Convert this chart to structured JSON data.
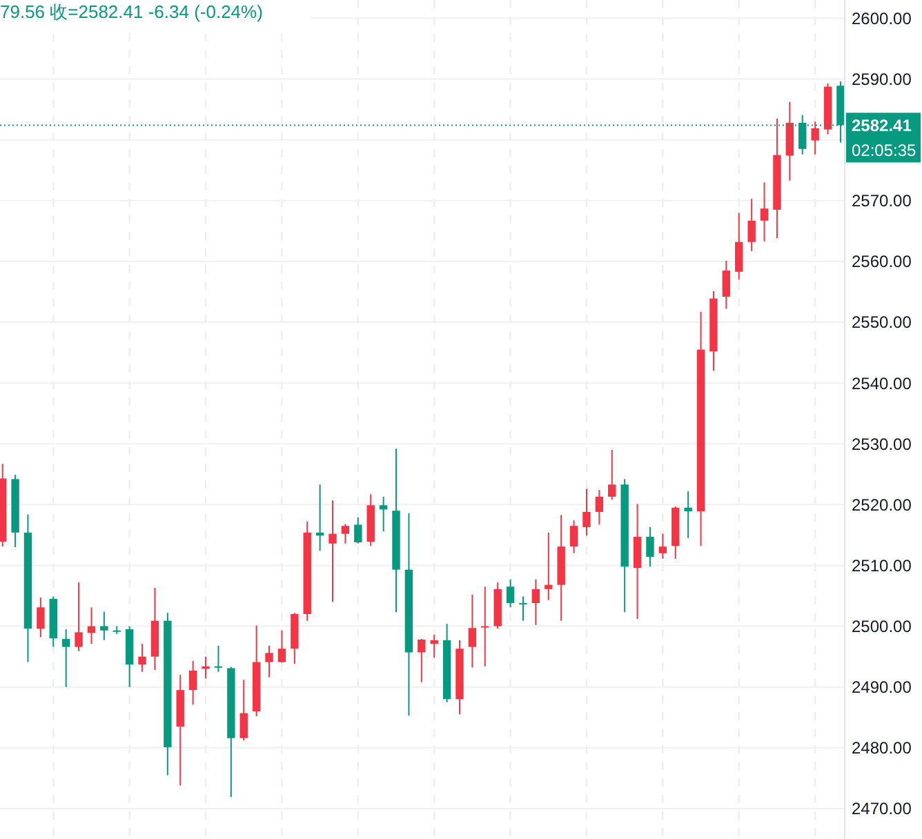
{
  "chart_data": {
    "type": "candlestick",
    "categories": [
      null,
      null,
      null,
      null,
      null,
      null,
      null,
      null,
      null,
      null,
      null,
      null,
      null,
      null,
      null,
      null,
      null,
      null,
      null,
      null,
      null,
      null,
      null,
      null,
      null,
      null,
      null,
      null,
      null,
      null,
      null,
      null,
      null,
      null,
      null,
      null,
      null,
      null,
      null,
      null,
      null,
      null,
      null,
      null,
      null,
      null,
      null,
      null,
      null,
      null,
      null,
      null,
      null,
      null,
      null,
      null,
      null,
      null,
      null,
      null,
      null,
      null,
      null,
      null,
      null,
      null,
      null
    ],
    "ohlc": [
      [
        2513.9,
        2526.7,
        2513.1,
        2524.3
      ],
      [
        2524.2,
        2524.9,
        2513.0,
        2515.4
      ],
      [
        2515.4,
        2518.4,
        2494.1,
        2499.6
      ],
      [
        2499.6,
        2504.7,
        2498.2,
        2503.1
      ],
      [
        2504.5,
        2504.9,
        2496.6,
        2498.0
      ],
      [
        2497.9,
        2499.5,
        2490.0,
        2496.6
      ],
      [
        2496.6,
        2507.2,
        2495.9,
        2499.0
      ],
      [
        2498.9,
        2503.1,
        2497.1,
        2500.0
      ],
      [
        2500.0,
        2502.4,
        2497.7,
        2499.3
      ],
      [
        2499.3,
        2500.0,
        2498.7,
        2499.2
      ],
      [
        2499.5,
        2500.0,
        2490.0,
        2493.7
      ],
      [
        2493.7,
        2497.1,
        2492.5,
        2495.0
      ],
      [
        2495.0,
        2506.3,
        2492.8,
        2500.9
      ],
      [
        2500.9,
        2502.2,
        2475.5,
        2480.1
      ],
      [
        2483.5,
        2492.0,
        2473.8,
        2489.5
      ],
      [
        2489.5,
        2494.3,
        2487.1,
        2492.7
      ],
      [
        2493.0,
        2495.0,
        2491.4,
        2493.4
      ],
      [
        2493.4,
        2496.8,
        2492.5,
        2493.2
      ],
      [
        2493.1,
        2493.3,
        2471.9,
        2481.6
      ],
      [
        2481.6,
        2491.2,
        2481.2,
        2485.7
      ],
      [
        2486.0,
        2500.1,
        2485.2,
        2494.1
      ],
      [
        2494.1,
        2496.8,
        2491.6,
        2495.6
      ],
      [
        2494.1,
        2499.3,
        2494.0,
        2496.3
      ],
      [
        2496.3,
        2502.2,
        2493.8,
        2502.0
      ],
      [
        2502.0,
        2517.2,
        2500.9,
        2515.4
      ],
      [
        2515.4,
        2523.3,
        2512.4,
        2514.9
      ],
      [
        2513.6,
        2520.7,
        2504.0,
        2515.2
      ],
      [
        2515.2,
        2516.8,
        2513.6,
        2516.5
      ],
      [
        2516.7,
        2517.9,
        2513.6,
        2513.8
      ],
      [
        2513.9,
        2521.7,
        2513.2,
        2519.9
      ],
      [
        2519.9,
        2521.3,
        2515.6,
        2519.2
      ],
      [
        2519.0,
        2529.2,
        2502.3,
        2509.3
      ],
      [
        2509.3,
        2518.6,
        2485.3,
        2495.7
      ],
      [
        2495.7,
        2497.9,
        2490.8,
        2497.8
      ],
      [
        2497.1,
        2498.6,
        2494.8,
        2497.7
      ],
      [
        2497.7,
        2500.4,
        2487.5,
        2488.0
      ],
      [
        2488.0,
        2497.7,
        2485.5,
        2496.3
      ],
      [
        2496.6,
        2505.2,
        2493.2,
        2499.7
      ],
      [
        2499.8,
        2506.5,
        2493.4,
        2500.0
      ],
      [
        2500.0,
        2507.2,
        2499.6,
        2506.1
      ],
      [
        2506.5,
        2507.7,
        2503.1,
        2503.8
      ],
      [
        2503.8,
        2504.9,
        2500.9,
        2503.7
      ],
      [
        2503.8,
        2507.7,
        2500.2,
        2506.1
      ],
      [
        2506.1,
        2515.4,
        2504.3,
        2506.8
      ],
      [
        2506.8,
        2518.3,
        2500.9,
        2513.1
      ],
      [
        2513.1,
        2517.4,
        2512.0,
        2516.5
      ],
      [
        2516.3,
        2522.6,
        2514.9,
        2518.8
      ],
      [
        2518.8,
        2522.4,
        2516.7,
        2521.3
      ],
      [
        2521.3,
        2529.0,
        2520.8,
        2523.3
      ],
      [
        2523.3,
        2524.2,
        2502.3,
        2509.8
      ],
      [
        2509.6,
        2520.1,
        2501.2,
        2514.7
      ],
      [
        2514.7,
        2516.3,
        2509.8,
        2511.4
      ],
      [
        2512.0,
        2515.2,
        2511.1,
        2513.1
      ],
      [
        2513.2,
        2519.7,
        2511.1,
        2519.5
      ],
      [
        2519.5,
        2522.2,
        2514.5,
        2518.9
      ],
      [
        2518.9,
        2551.7,
        2513.2,
        2545.5
      ],
      [
        2545.2,
        2555.1,
        2542.0,
        2553.9
      ],
      [
        2554.2,
        2560.1,
        2552.2,
        2558.5
      ],
      [
        2558.3,
        2568.0,
        2557.0,
        2563.2
      ],
      [
        2563.2,
        2570.3,
        2561.7,
        2566.7
      ],
      [
        2566.7,
        2573.0,
        2563.3,
        2568.7
      ],
      [
        2568.5,
        2583.5,
        2563.8,
        2577.5
      ],
      [
        2577.4,
        2586.2,
        2573.3,
        2582.8
      ],
      [
        2582.8,
        2584.1,
        2577.6,
        2578.5
      ],
      [
        2579.9,
        2583.0,
        2577.6,
        2581.9
      ],
      [
        2581.7,
        2589.3,
        2580.9,
        2588.75
      ],
      [
        2588.9,
        2589.6,
        2579.56,
        2582.41
      ]
    ],
    "colors": [
      "#f23645",
      "#089981",
      "#089981",
      "#f23645",
      "#089981",
      "#089981",
      "#f23645",
      "#f23645",
      "#089981",
      "#089981",
      "#089981",
      "#f23645",
      "#f23645",
      "#089981",
      "#f23645",
      "#f23645",
      "#f23645",
      "#089981",
      "#089981",
      "#f23645",
      "#f23645",
      "#f23645",
      "#f23645",
      "#f23645",
      "#f23645",
      "#089981",
      "#f23645",
      "#f23645",
      "#089981",
      "#f23645",
      "#089981",
      "#089981",
      "#089981",
      "#f23645",
      "#f23645",
      "#089981",
      "#f23645",
      "#f23645",
      "#f23645",
      "#f23645",
      "#089981",
      "#089981",
      "#f23645",
      "#f23645",
      "#f23645",
      "#f23645",
      "#f23645",
      "#f23645",
      "#f23645",
      "#089981",
      "#f23645",
      "#089981",
      "#f23645",
      "#f23645",
      "#089981",
      "#f23645",
      "#f23645",
      "#f23645",
      "#f23645",
      "#f23645",
      "#f23645",
      "#f23645",
      "#f23645",
      "#089981",
      "#f23645",
      "#f23645",
      "#089981"
    ],
    "ylim": [
      2465,
      2603
    ],
    "yticks": [
      {
        "value": 2470,
        "label": "2470.00"
      },
      {
        "value": 2480,
        "label": "2480.00"
      },
      {
        "value": 2490,
        "label": "2490.00"
      },
      {
        "value": 2500,
        "label": "2500.00"
      },
      {
        "value": 2510,
        "label": "2510.00"
      },
      {
        "value": 2520,
        "label": "2520.00"
      },
      {
        "value": 2530,
        "label": "2530.00"
      },
      {
        "value": 2540,
        "label": "2540.00"
      },
      {
        "value": 2550,
        "label": "2550.00"
      },
      {
        "value": 2560,
        "label": "2560.00"
      },
      {
        "value": 2570,
        "label": "2570.00"
      },
      {
        "value": 2580,
        "label": null
      },
      {
        "value": 2590,
        "label": "2590.00"
      },
      {
        "value": 2600,
        "label": "2600.00"
      }
    ],
    "grid": true,
    "tick_labels": "y",
    "ref_lines": [
      {
        "axis": "y",
        "value": 2582.41,
        "label": "2582.41",
        "color": "#089981",
        "line_style": "dotted"
      }
    ],
    "annotations": [
      "79.56 收=2582.41  -6.34 (-0.24%)",
      "02:05:35"
    ]
  }
}
